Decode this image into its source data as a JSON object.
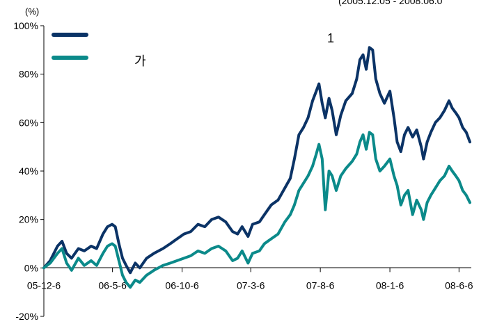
{
  "chart_data": {
    "type": "line",
    "unit_label": "(%)",
    "corner_note": "(2005.12.05 - 2008.06.0",
    "y_range": [
      -20,
      100
    ],
    "y_ticks": [
      {
        "value": 100,
        "label": "100%"
      },
      {
        "value": 80,
        "label": "80%"
      },
      {
        "value": 60,
        "label": "60%"
      },
      {
        "value": 40,
        "label": "40%"
      },
      {
        "value": 20,
        "label": "20%"
      },
      {
        "value": 0,
        "label": "0%"
      },
      {
        "value": -20,
        "label": "-20%"
      }
    ],
    "x_range": [
      "2005-12-06",
      "2008-07-03"
    ],
    "x_ticks": [
      {
        "date": "2005-12-06",
        "label": "05-12-6"
      },
      {
        "date": "2006-05-06",
        "label": "06-5-6"
      },
      {
        "date": "2006-10-06",
        "label": "06-10-6"
      },
      {
        "date": "2007-03-06",
        "label": "07-3-6"
      },
      {
        "date": "2007-08-06",
        "label": "07-8-6"
      },
      {
        "date": "2008-01-06",
        "label": "08-1-6"
      },
      {
        "date": "2008-06-06",
        "label": "08-6-6"
      }
    ],
    "legend_position": "top-left",
    "grid": false,
    "series": [
      {
        "name": "1",
        "color": "#0b3366",
        "points": [
          [
            "2005-12-06",
            0
          ],
          [
            "2005-12-20",
            3
          ],
          [
            "2006-01-05",
            9
          ],
          [
            "2006-01-15",
            11
          ],
          [
            "2006-01-25",
            6
          ],
          [
            "2006-02-05",
            4
          ],
          [
            "2006-02-20",
            8
          ],
          [
            "2006-03-05",
            7
          ],
          [
            "2006-03-20",
            9
          ],
          [
            "2006-04-01",
            8
          ],
          [
            "2006-04-15",
            14
          ],
          [
            "2006-04-25",
            17
          ],
          [
            "2006-05-05",
            18
          ],
          [
            "2006-05-12",
            17
          ],
          [
            "2006-05-20",
            10
          ],
          [
            "2006-05-28",
            4
          ],
          [
            "2006-06-05",
            1
          ],
          [
            "2006-06-14",
            -2
          ],
          [
            "2006-06-25",
            2
          ],
          [
            "2006-07-05",
            0
          ],
          [
            "2006-07-20",
            4
          ],
          [
            "2006-08-05",
            6
          ],
          [
            "2006-08-25",
            8
          ],
          [
            "2006-09-10",
            10
          ],
          [
            "2006-09-25",
            12
          ],
          [
            "2006-10-10",
            14
          ],
          [
            "2006-10-25",
            15
          ],
          [
            "2006-11-10",
            18
          ],
          [
            "2006-11-25",
            17
          ],
          [
            "2006-12-10",
            20
          ],
          [
            "2006-12-25",
            21
          ],
          [
            "2007-01-10",
            19
          ],
          [
            "2007-01-25",
            15
          ],
          [
            "2007-02-05",
            14
          ],
          [
            "2007-02-15",
            17
          ],
          [
            "2007-02-28",
            13
          ],
          [
            "2007-03-10",
            18
          ],
          [
            "2007-03-25",
            19
          ],
          [
            "2007-04-05",
            22
          ],
          [
            "2007-04-20",
            26
          ],
          [
            "2007-05-05",
            28
          ],
          [
            "2007-05-20",
            33
          ],
          [
            "2007-06-01",
            37
          ],
          [
            "2007-06-10",
            45
          ],
          [
            "2007-06-20",
            55
          ],
          [
            "2007-06-30",
            58
          ],
          [
            "2007-07-10",
            62
          ],
          [
            "2007-07-20",
            69
          ],
          [
            "2007-07-28",
            73
          ],
          [
            "2007-08-03",
            76
          ],
          [
            "2007-08-10",
            68
          ],
          [
            "2007-08-17",
            62
          ],
          [
            "2007-08-25",
            70
          ],
          [
            "2007-09-01",
            65
          ],
          [
            "2007-09-10",
            55
          ],
          [
            "2007-09-20",
            63
          ],
          [
            "2007-10-01",
            69
          ],
          [
            "2007-10-15",
            72
          ],
          [
            "2007-10-25",
            78
          ],
          [
            "2007-11-01",
            86
          ],
          [
            "2007-11-08",
            88
          ],
          [
            "2007-11-15",
            82
          ],
          [
            "2007-11-22",
            91
          ],
          [
            "2007-11-29",
            90
          ],
          [
            "2007-12-06",
            78
          ],
          [
            "2007-12-15",
            72
          ],
          [
            "2007-12-25",
            68
          ],
          [
            "2008-01-06",
            73
          ],
          [
            "2008-01-15",
            62
          ],
          [
            "2008-01-22",
            52
          ],
          [
            "2008-01-30",
            48
          ],
          [
            "2008-02-07",
            55
          ],
          [
            "2008-02-15",
            58
          ],
          [
            "2008-02-25",
            54
          ],
          [
            "2008-03-05",
            57
          ],
          [
            "2008-03-15",
            50
          ],
          [
            "2008-03-20",
            45
          ],
          [
            "2008-03-28",
            52
          ],
          [
            "2008-04-05",
            56
          ],
          [
            "2008-04-15",
            60
          ],
          [
            "2008-04-25",
            62
          ],
          [
            "2008-05-05",
            65
          ],
          [
            "2008-05-15",
            69
          ],
          [
            "2008-05-22",
            66
          ],
          [
            "2008-05-30",
            64
          ],
          [
            "2008-06-06",
            62
          ],
          [
            "2008-06-14",
            58
          ],
          [
            "2008-06-22",
            56
          ],
          [
            "2008-06-30",
            52
          ]
        ]
      },
      {
        "name": "가",
        "color": "#0b8a8a",
        "points": [
          [
            "2005-12-06",
            0
          ],
          [
            "2005-12-20",
            2
          ],
          [
            "2006-01-05",
            6
          ],
          [
            "2006-01-15",
            8
          ],
          [
            "2006-01-25",
            2
          ],
          [
            "2006-02-05",
            -1
          ],
          [
            "2006-02-20",
            4
          ],
          [
            "2006-03-05",
            1
          ],
          [
            "2006-03-20",
            3
          ],
          [
            "2006-04-01",
            1
          ],
          [
            "2006-04-15",
            6
          ],
          [
            "2006-04-25",
            9
          ],
          [
            "2006-05-05",
            10
          ],
          [
            "2006-05-12",
            9
          ],
          [
            "2006-05-20",
            3
          ],
          [
            "2006-05-28",
            -3
          ],
          [
            "2006-06-05",
            -6
          ],
          [
            "2006-06-14",
            -8
          ],
          [
            "2006-06-25",
            -5
          ],
          [
            "2006-07-05",
            -6
          ],
          [
            "2006-07-20",
            -3
          ],
          [
            "2006-08-05",
            -1
          ],
          [
            "2006-08-25",
            1
          ],
          [
            "2006-09-10",
            2
          ],
          [
            "2006-09-25",
            3
          ],
          [
            "2006-10-10",
            4
          ],
          [
            "2006-10-25",
            5
          ],
          [
            "2006-11-10",
            7
          ],
          [
            "2006-11-25",
            6
          ],
          [
            "2006-12-10",
            8
          ],
          [
            "2006-12-25",
            9
          ],
          [
            "2007-01-10",
            7
          ],
          [
            "2007-01-25",
            3
          ],
          [
            "2007-02-05",
            4
          ],
          [
            "2007-02-15",
            7
          ],
          [
            "2007-02-28",
            2
          ],
          [
            "2007-03-10",
            6
          ],
          [
            "2007-03-25",
            7
          ],
          [
            "2007-04-05",
            10
          ],
          [
            "2007-04-20",
            12
          ],
          [
            "2007-05-05",
            14
          ],
          [
            "2007-05-20",
            19
          ],
          [
            "2007-06-01",
            22
          ],
          [
            "2007-06-10",
            26
          ],
          [
            "2007-06-20",
            32
          ],
          [
            "2007-06-30",
            35
          ],
          [
            "2007-07-10",
            38
          ],
          [
            "2007-07-20",
            42
          ],
          [
            "2007-07-28",
            47
          ],
          [
            "2007-08-03",
            51
          ],
          [
            "2007-08-10",
            45
          ],
          [
            "2007-08-17",
            24
          ],
          [
            "2007-08-25",
            40
          ],
          [
            "2007-09-01",
            38
          ],
          [
            "2007-09-10",
            32
          ],
          [
            "2007-09-20",
            38
          ],
          [
            "2007-10-01",
            41
          ],
          [
            "2007-10-15",
            44
          ],
          [
            "2007-10-25",
            47
          ],
          [
            "2007-11-01",
            52
          ],
          [
            "2007-11-08",
            55
          ],
          [
            "2007-11-15",
            49
          ],
          [
            "2007-11-22",
            56
          ],
          [
            "2007-11-29",
            55
          ],
          [
            "2007-12-06",
            45
          ],
          [
            "2007-12-15",
            40
          ],
          [
            "2007-12-25",
            42
          ],
          [
            "2008-01-06",
            45
          ],
          [
            "2008-01-15",
            38
          ],
          [
            "2008-01-22",
            34
          ],
          [
            "2008-01-30",
            26
          ],
          [
            "2008-02-07",
            30
          ],
          [
            "2008-02-15",
            32
          ],
          [
            "2008-02-25",
            22
          ],
          [
            "2008-03-05",
            28
          ],
          [
            "2008-03-15",
            24
          ],
          [
            "2008-03-20",
            20
          ],
          [
            "2008-03-28",
            27
          ],
          [
            "2008-04-05",
            30
          ],
          [
            "2008-04-15",
            33
          ],
          [
            "2008-04-25",
            36
          ],
          [
            "2008-05-05",
            38
          ],
          [
            "2008-05-15",
            42
          ],
          [
            "2008-05-22",
            40
          ],
          [
            "2008-05-30",
            38
          ],
          [
            "2008-06-06",
            36
          ],
          [
            "2008-06-14",
            32
          ],
          [
            "2008-06-22",
            30
          ],
          [
            "2008-06-30",
            27
          ]
        ]
      }
    ]
  }
}
